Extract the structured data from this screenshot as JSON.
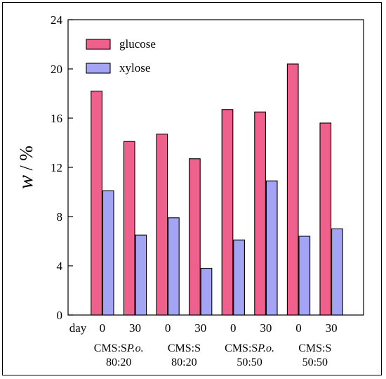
{
  "chart_data": {
    "type": "bar",
    "title": "",
    "xlabel": "",
    "ylabel": "w / %",
    "ylabel_var": "w",
    "ylabel_unit": " / %",
    "ylim": [
      0,
      24
    ],
    "yticks": [
      0,
      4,
      8,
      12,
      16,
      20,
      24
    ],
    "x_prefix_label": "day",
    "categories": [
      "0",
      "30",
      "0",
      "30",
      "0",
      "30",
      "0",
      "30"
    ],
    "groups": [
      {
        "line1": "CMS:S",
        "line1_italic": "P.o.",
        "line2": "80:20"
      },
      {
        "line1": "CMS:S",
        "line1_italic": "",
        "line2": "80:20"
      },
      {
        "line1": "CMS:S",
        "line1_italic": "P.o.",
        "line2": "50:50"
      },
      {
        "line1": "CMS:S",
        "line1_italic": "",
        "line2": "50:50"
      }
    ],
    "series": [
      {
        "name": "glucose",
        "color": "#f0608c",
        "values": [
          18.2,
          14.1,
          14.7,
          12.7,
          16.7,
          16.5,
          20.4,
          15.6
        ]
      },
      {
        "name": "xylose",
        "color": "#a4a4f4",
        "values": [
          10.1,
          6.5,
          7.9,
          3.8,
          6.1,
          10.9,
          6.4,
          7.0
        ]
      }
    ],
    "legend_position": "top-left",
    "grid": false
  }
}
